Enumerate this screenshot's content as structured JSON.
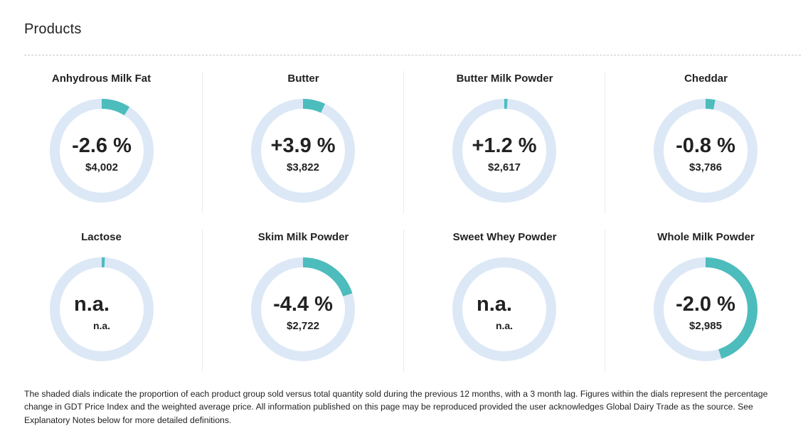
{
  "page": {
    "title": "Products"
  },
  "colors": {
    "track": "#dce8f6",
    "fill": "#4dbcbc"
  },
  "products": [
    {
      "name": "Anhydrous Milk Fat",
      "change": "-2.6 %",
      "price": "$4,002",
      "share": 0.09
    },
    {
      "name": "Butter",
      "change": "+3.9 %",
      "price": "$3,822",
      "share": 0.07
    },
    {
      "name": "Butter Milk Powder",
      "change": "+1.2 %",
      "price": "$2,617",
      "share": 0.01
    },
    {
      "name": "Cheddar",
      "change": "-0.8 %",
      "price": "$3,786",
      "share": 0.03
    },
    {
      "name": "Lactose",
      "change": "n.a.",
      "price": "n.a.",
      "share": 0.01
    },
    {
      "name": "Skim Milk Powder",
      "change": "-4.4 %",
      "price": "$2,722",
      "share": 0.2
    },
    {
      "name": "Sweet Whey Powder",
      "change": "n.a.",
      "price": "n.a.",
      "share": 0
    },
    {
      "name": "Whole Milk Powder",
      "change": "-2.0 %",
      "price": "$2,985",
      "share": 0.45
    }
  ],
  "footnote": "The shaded dials indicate the proportion of each product group sold versus total quantity sold during the previous 12 months, with a 3 month lag. Figures within the dials represent the percentage change in GDT Price Index and the weighted average price. All information published on this page may be reproduced provided the user acknowledges Global Dairy Trade as the source. See Explanatory Notes below for more detailed definitions."
}
